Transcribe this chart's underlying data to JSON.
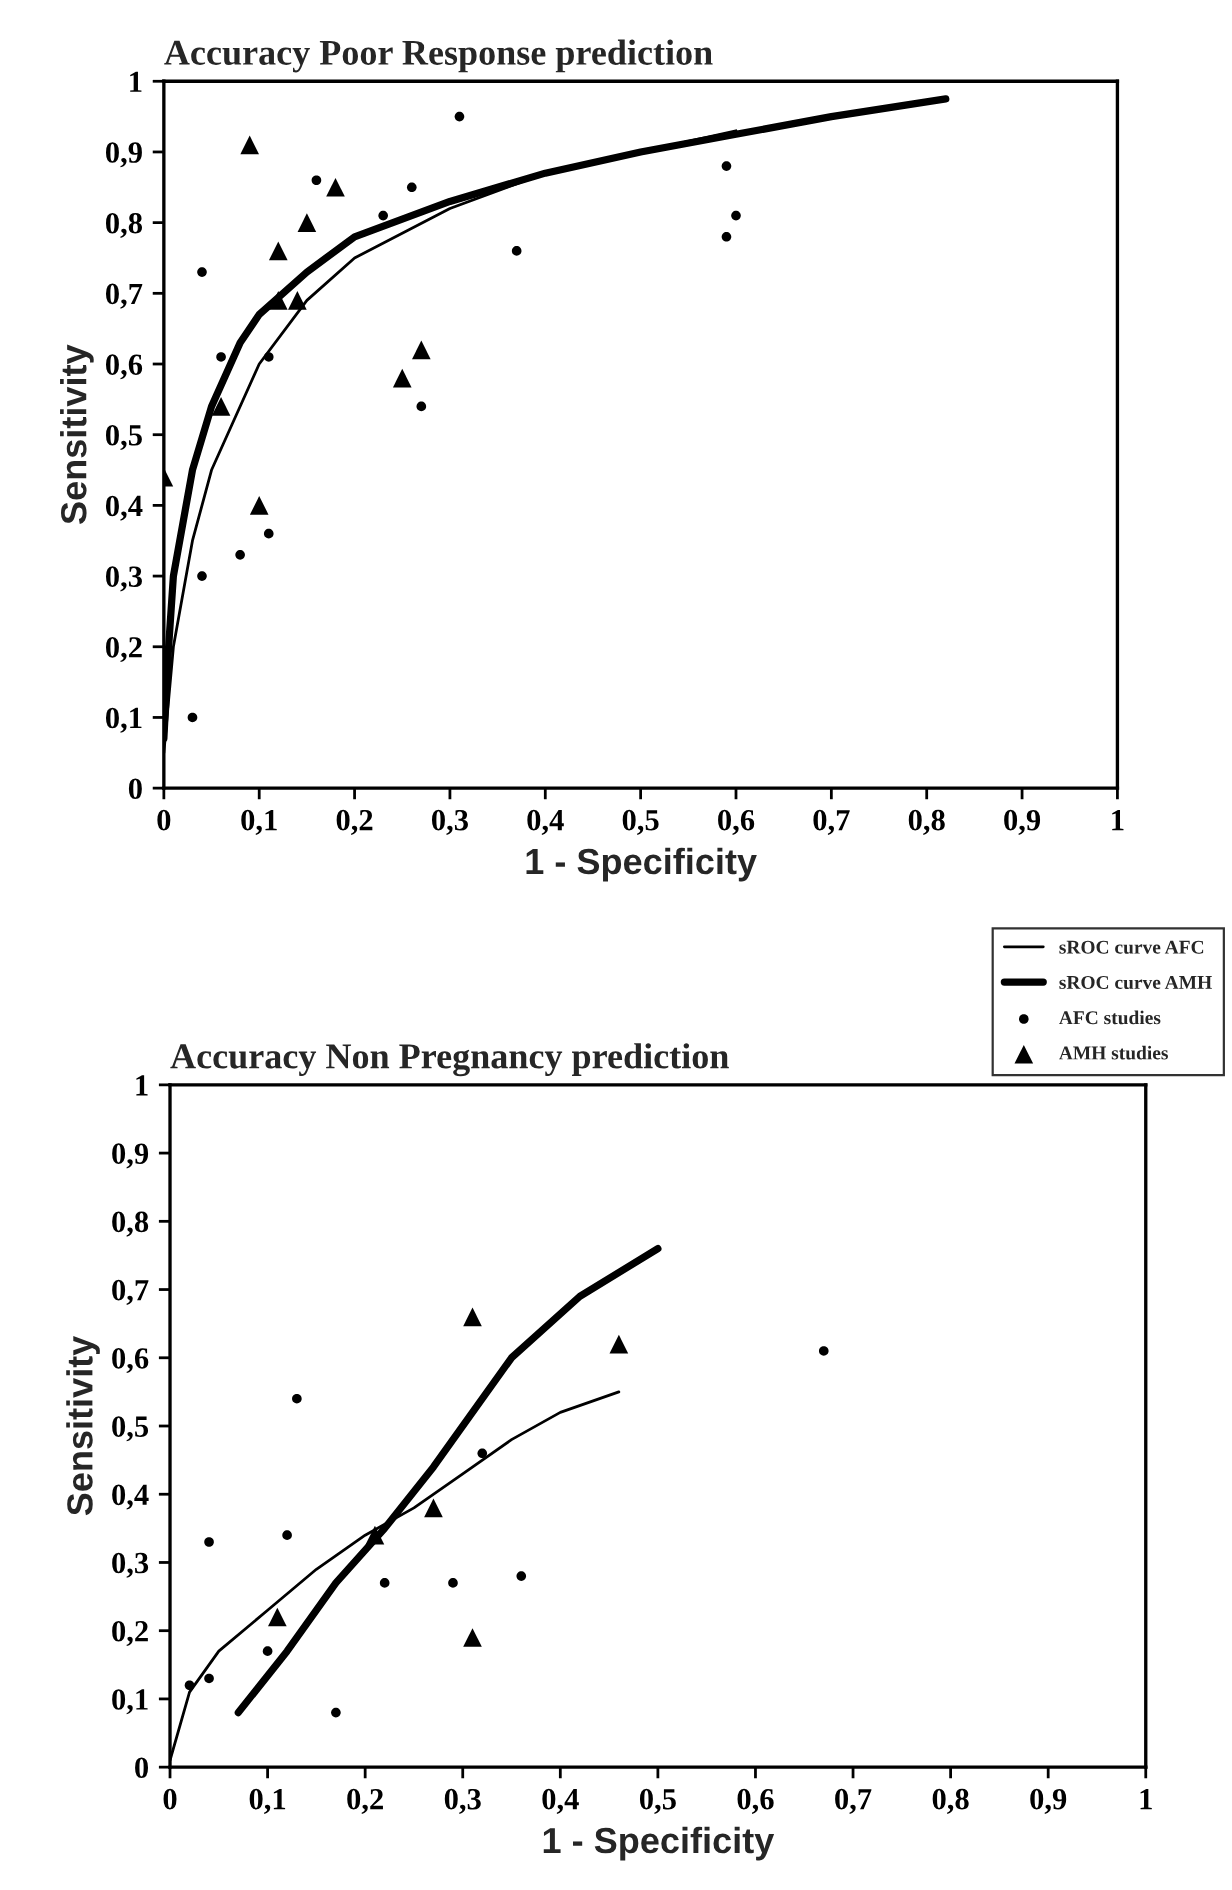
{
  "chart_data": [
    {
      "type": "scatter",
      "title": "Accuracy Poor Response prediction",
      "xlabel": "1 - Specificity",
      "ylabel": "Sensitivity",
      "xlim": [
        0,
        1
      ],
      "ylim": [
        0,
        1
      ],
      "xticks": [
        0,
        {
          "value": 0.1,
          "label": "0,1"
        },
        {
          "value": 0.2,
          "label": "0,2"
        },
        {
          "value": 0.3,
          "label": "0,3"
        },
        {
          "value": 0.4,
          "label": "0,4"
        },
        {
          "value": 0.5,
          "label": "0,5"
        },
        {
          "value": 0.6,
          "label": "0,6"
        },
        {
          "value": 0.7,
          "label": "0,7"
        },
        {
          "value": 0.8,
          "label": "0,8"
        },
        {
          "value": 0.9,
          "label": "0,9"
        },
        1
      ],
      "yticks": [
        0,
        {
          "value": 0.1,
          "label": "0,1"
        },
        {
          "value": 0.2,
          "label": "0,2"
        },
        {
          "value": 0.3,
          "label": "0,3"
        },
        {
          "value": 0.4,
          "label": "0,4"
        },
        {
          "value": 0.5,
          "label": "0,5"
        },
        {
          "value": 0.6,
          "label": "0,6"
        },
        {
          "value": 0.7,
          "label": "0,7"
        },
        {
          "value": 0.8,
          "label": "0,8"
        },
        {
          "value": 0.9,
          "label": "0,9"
        },
        1
      ],
      "series": [
        {
          "type": "line",
          "color": "#000000",
          "marker": "none",
          "x": [
            0,
            0.01,
            0.03,
            0.05,
            0.1,
            0.15,
            0.2,
            0.3,
            0.4,
            0.5,
            0.6
          ],
          "values": [
            0.05,
            0.2,
            0.35,
            0.45,
            0.6,
            0.69,
            0.75,
            0.82,
            0.87,
            0.9,
            0.93
          ]
        },
        {
          "type": "line",
          "color": "#000000",
          "marker": "none",
          "x": [
            0,
            0.005,
            0.01,
            0.03,
            0.05,
            0.08,
            0.1,
            0.15,
            0.2,
            0.3,
            0.4,
            0.5,
            0.6,
            0.7,
            0.82
          ],
          "values": [
            0.07,
            0.2,
            0.3,
            0.45,
            0.54,
            0.63,
            0.67,
            0.73,
            0.78,
            0.83,
            0.87,
            0.9,
            0.925,
            0.95,
            0.975
          ]
        },
        {
          "color": "#000000",
          "marker": "circle",
          "x": [
            0.04,
            0.16,
            0.26,
            0.31,
            0.23,
            0.37,
            0.06,
            0.11,
            0.27,
            0.11,
            0.08,
            0.04,
            0.03,
            0.59,
            0.6,
            0.59
          ],
          "values": [
            0.73,
            0.86,
            0.85,
            0.95,
            0.81,
            0.76,
            0.61,
            0.61,
            0.54,
            0.36,
            0.33,
            0.3,
            0.1,
            0.88,
            0.81,
            0.78
          ]
        },
        {
          "color": "#000000",
          "marker": "triangle",
          "x": [
            0,
            0.09,
            0.18,
            0.15,
            0.12,
            0.12,
            0.14,
            0.06,
            0.1,
            0.25,
            0.27
          ],
          "values": [
            0.44,
            0.91,
            0.85,
            0.8,
            0.76,
            0.69,
            0.69,
            0.54,
            0.4,
            0.58,
            0.62
          ]
        }
      ]
    },
    {
      "type": "scatter",
      "title": "Accuracy Non Pregnancy prediction",
      "xlabel": "1 - Specificity",
      "ylabel": "Sensitivity",
      "xlim": [
        0,
        1
      ],
      "ylim": [
        0,
        1
      ],
      "xticks": [
        0,
        {
          "value": 0.1,
          "label": "0,1"
        },
        {
          "value": 0.2,
          "label": "0,2"
        },
        {
          "value": 0.3,
          "label": "0,3"
        },
        {
          "value": 0.4,
          "label": "0,4"
        },
        {
          "value": 0.5,
          "label": "0,5"
        },
        {
          "value": 0.6,
          "label": "0,6"
        },
        {
          "value": 0.7,
          "label": "0,7"
        },
        {
          "value": 0.8,
          "label": "0,8"
        },
        {
          "value": 0.9,
          "label": "0,9"
        },
        1
      ],
      "yticks": [
        0,
        {
          "value": 0.1,
          "label": "0,1"
        },
        {
          "value": 0.2,
          "label": "0,2"
        },
        {
          "value": 0.3,
          "label": "0,3"
        },
        {
          "value": 0.4,
          "label": "0,4"
        },
        {
          "value": 0.5,
          "label": "0,5"
        },
        {
          "value": 0.6,
          "label": "0,6"
        },
        {
          "value": 0.7,
          "label": "0,7"
        },
        {
          "value": 0.8,
          "label": "0,8"
        },
        {
          "value": 0.9,
          "label": "0,9"
        },
        1
      ],
      "legend": "top right",
      "series": [
        {
          "type": "line",
          "name": "sROC curve AFC",
          "color": "#000000",
          "marker": "none",
          "x": [
            0,
            0.02,
            0.05,
            0.1,
            0.15,
            0.2,
            0.25,
            0.3,
            0.35,
            0.4,
            0.46
          ],
          "values": [
            0.01,
            0.11,
            0.17,
            0.23,
            0.29,
            0.34,
            0.38,
            0.43,
            0.48,
            0.52,
            0.55
          ]
        },
        {
          "type": "line",
          "name": "sROC curve AMH",
          "color": "#000000",
          "marker": "none",
          "x": [
            0.07,
            0.12,
            0.17,
            0.22,
            0.27,
            0.35,
            0.42,
            0.5
          ],
          "values": [
            0.08,
            0.17,
            0.27,
            0.35,
            0.44,
            0.6,
            0.69,
            0.76
          ]
        },
        {
          "name": "AFC studies",
          "color": "#000000",
          "marker": "circle",
          "x": [
            0.02,
            0.04,
            0.04,
            0.1,
            0.12,
            0.13,
            0.17,
            0.22,
            0.29,
            0.36,
            0.32,
            0.67
          ],
          "values": [
            0.12,
            0.13,
            0.33,
            0.17,
            0.34,
            0.54,
            0.08,
            0.27,
            0.27,
            0.28,
            0.46,
            0.61
          ]
        },
        {
          "name": "AMH studies",
          "color": "#000000",
          "marker": "triangle",
          "x": [
            0.11,
            0.21,
            0.27,
            0.31,
            0.31,
            0.46
          ],
          "values": [
            0.22,
            0.34,
            0.38,
            0.66,
            0.19,
            0.62
          ]
        }
      ]
    }
  ]
}
